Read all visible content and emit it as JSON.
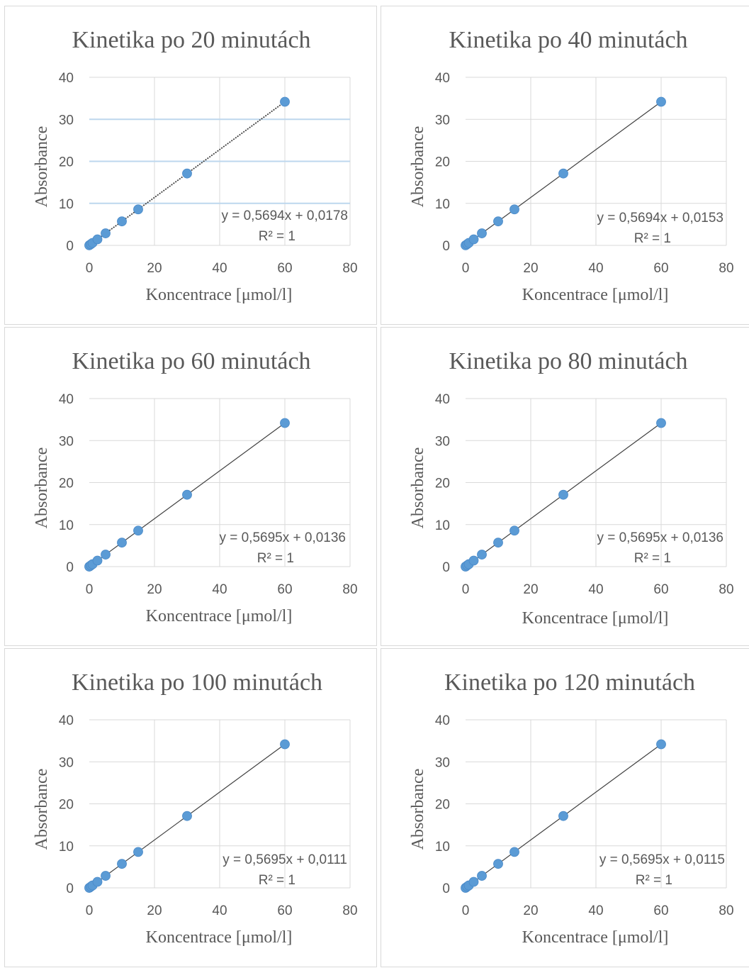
{
  "chart_data": [
    {
      "type": "scatter",
      "title": "Kinetika po 20 minutách",
      "xlabel": "Koncentrace [μmol/l]",
      "ylabel": "Absorbance",
      "xlim": [
        0,
        80
      ],
      "ylim": [
        0,
        40
      ],
      "x_ticks": [
        "0",
        "20",
        "40",
        "60",
        "80"
      ],
      "y_ticks": [
        "0",
        "10",
        "20",
        "30",
        "40"
      ],
      "grid": true,
      "gridline_color": "#bdd7ee",
      "point_color": "#5b9bd5",
      "x": [
        0,
        0.5,
        1,
        2.5,
        5,
        10,
        15,
        30,
        60
      ],
      "y": [
        0.03,
        0.3,
        0.59,
        1.44,
        2.86,
        5.71,
        8.56,
        17.1,
        34.18
      ],
      "trendline": {
        "slope": 0.5694,
        "intercept": 0.0178,
        "style": "dotted"
      },
      "equation": "y = 0,5694x + 0,0178",
      "r2": "R² = 1"
    },
    {
      "type": "scatter",
      "title": "Kinetika po 40 minutách",
      "xlabel": "Koncentrace [μmol/l]",
      "ylabel": "Absorbance",
      "xlim": [
        0,
        80
      ],
      "ylim": [
        0,
        40
      ],
      "x_ticks": [
        "0",
        "20",
        "40",
        "60",
        "80"
      ],
      "y_ticks": [
        "0",
        "10",
        "20",
        "30",
        "40"
      ],
      "grid": true,
      "gridline_color": "#d9d9d9",
      "point_color": "#5b9bd5",
      "x": [
        0,
        0.5,
        1,
        2.5,
        5,
        10,
        15,
        30,
        60
      ],
      "y": [
        0.02,
        0.3,
        0.59,
        1.44,
        2.86,
        5.71,
        8.56,
        17.1,
        34.18
      ],
      "trendline": {
        "slope": 0.5694,
        "intercept": 0.0153,
        "style": "solid"
      },
      "equation": "y = 0,5694x + 0,0153",
      "r2": "R² = 1"
    },
    {
      "type": "scatter",
      "title": "Kinetika po 60 minutách",
      "xlabel": "Koncentrace [μmol/l]",
      "ylabel": "Absorbance",
      "xlim": [
        0,
        80
      ],
      "ylim": [
        0,
        40
      ],
      "x_ticks": [
        "0",
        "20",
        "40",
        "60",
        "80"
      ],
      "y_ticks": [
        "0",
        "10",
        "20",
        "30",
        "40"
      ],
      "grid": true,
      "gridline_color": "#d9d9d9",
      "point_color": "#5b9bd5",
      "x": [
        0,
        0.5,
        1,
        2.5,
        5,
        10,
        15,
        30,
        60
      ],
      "y": [
        0.01,
        0.3,
        0.58,
        1.44,
        2.86,
        5.71,
        8.56,
        17.1,
        34.18
      ],
      "trendline": {
        "slope": 0.5695,
        "intercept": 0.0136,
        "style": "solid"
      },
      "equation": "y = 0,5695x + 0,0136",
      "r2": "R² = 1"
    },
    {
      "type": "scatter",
      "title": "Kinetika po 80 minutách",
      "xlabel": "Koncentrace [μmol/l]",
      "ylabel": "Absorbance",
      "xlim": [
        0,
        80
      ],
      "ylim": [
        0,
        40
      ],
      "x_ticks": [
        "0",
        "20",
        "40",
        "60",
        "80"
      ],
      "y_ticks": [
        "0",
        "10",
        "20",
        "30",
        "40"
      ],
      "grid": true,
      "gridline_color": "#d9d9d9",
      "point_color": "#5b9bd5",
      "x": [
        0,
        0.5,
        1,
        2.5,
        5,
        10,
        15,
        30,
        60
      ],
      "y": [
        0.01,
        0.3,
        0.58,
        1.44,
        2.86,
        5.71,
        8.56,
        17.1,
        34.18
      ],
      "trendline": {
        "slope": 0.5695,
        "intercept": 0.0136,
        "style": "solid"
      },
      "equation": "y = 0,5695x + 0,0136",
      "r2": "R² = 1"
    },
    {
      "type": "scatter",
      "title": "Kinetika po 100 minutách",
      "xlabel": "Koncentrace [μmol/l]",
      "ylabel": "Absorbance",
      "xlim": [
        0,
        80
      ],
      "ylim": [
        0,
        40
      ],
      "x_ticks": [
        "0",
        "20",
        "40",
        "60",
        "80"
      ],
      "y_ticks": [
        "0",
        "10",
        "20",
        "30",
        "40"
      ],
      "grid": true,
      "gridline_color": "#d9d9d9",
      "point_color": "#5b9bd5",
      "x": [
        0,
        0.5,
        1,
        2.5,
        5,
        10,
        15,
        30,
        60
      ],
      "y": [
        0.01,
        0.3,
        0.58,
        1.43,
        2.86,
        5.71,
        8.55,
        17.1,
        34.18
      ],
      "trendline": {
        "slope": 0.5695,
        "intercept": 0.0111,
        "style": "solid"
      },
      "equation": "y = 0,5695x + 0,0111",
      "r2": "R² = 1"
    },
    {
      "type": "scatter",
      "title": "Kinetika po 120 minutách",
      "xlabel": "Koncentrace [μmol/l]",
      "ylabel": "Absorbance",
      "xlim": [
        0,
        80
      ],
      "ylim": [
        0,
        40
      ],
      "x_ticks": [
        "0",
        "20",
        "40",
        "60",
        "80"
      ],
      "y_ticks": [
        "0",
        "10",
        "20",
        "30",
        "40"
      ],
      "grid": true,
      "gridline_color": "#d9d9d9",
      "point_color": "#5b9bd5",
      "x": [
        0,
        0.5,
        1,
        2.5,
        5,
        10,
        15,
        30,
        60
      ],
      "y": [
        0.01,
        0.3,
        0.58,
        1.43,
        2.86,
        5.71,
        8.55,
        17.1,
        34.18
      ],
      "trendline": {
        "slope": 0.5695,
        "intercept": 0.0115,
        "style": "solid"
      },
      "equation": "y = 0,5695x + 0,0115",
      "r2": "R² = 1"
    }
  ]
}
